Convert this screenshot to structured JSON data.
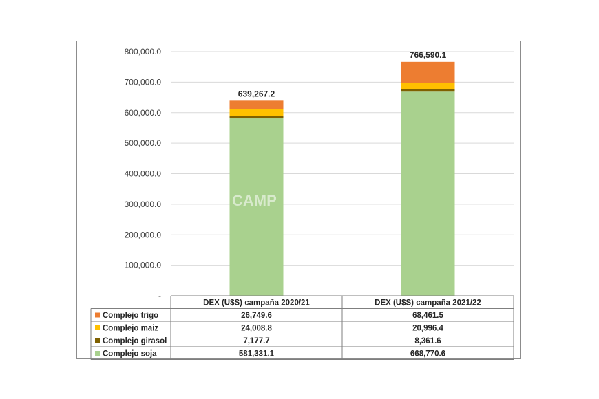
{
  "watermark": "CAMP",
  "chart_data": {
    "type": "bar",
    "stacked": true,
    "categories": [
      "DEX (U$S) campaña 2020/21",
      "DEX (U$S) campaña 2021/22"
    ],
    "series": [
      {
        "name": "Complejo soja",
        "color": "#a9d18e",
        "values": [
          581331.1,
          668770.6
        ],
        "labels": [
          "581,331.1",
          "668,770.6"
        ]
      },
      {
        "name": "Complejo girasol",
        "color": "#7f6000",
        "values": [
          7177.7,
          8361.6
        ],
        "labels": [
          "7,177.7",
          "8,361.6"
        ]
      },
      {
        "name": "Complejo maiz",
        "color": "#ffc000",
        "values": [
          24008.8,
          20996.4
        ],
        "labels": [
          "24,008.8",
          "20,996.4"
        ]
      },
      {
        "name": "Complejo trigo",
        "color": "#ed7d31",
        "values": [
          26749.6,
          68461.5
        ],
        "labels": [
          "26,749.6",
          "68,461.5"
        ]
      }
    ],
    "totals": [
      "639,267.2",
      "766,590.1"
    ],
    "yticks": [
      {
        "value": 0,
        "label": "-"
      },
      {
        "value": 100000,
        "label": "100,000.0"
      },
      {
        "value": 200000,
        "label": "200,000.0"
      },
      {
        "value": 300000,
        "label": "300,000.0"
      },
      {
        "value": 400000,
        "label": "400,000.0"
      },
      {
        "value": 500000,
        "label": "500,000.0"
      },
      {
        "value": 600000,
        "label": "600,000.0"
      },
      {
        "value": 700000,
        "label": "700,000.0"
      },
      {
        "value": 800000,
        "label": "800,000.0"
      }
    ],
    "ylim": [
      0,
      800000
    ],
    "grid": true,
    "legend": "data-table",
    "table_row_order": [
      "Complejo trigo",
      "Complejo maiz",
      "Complejo girasol",
      "Complejo soja"
    ]
  }
}
